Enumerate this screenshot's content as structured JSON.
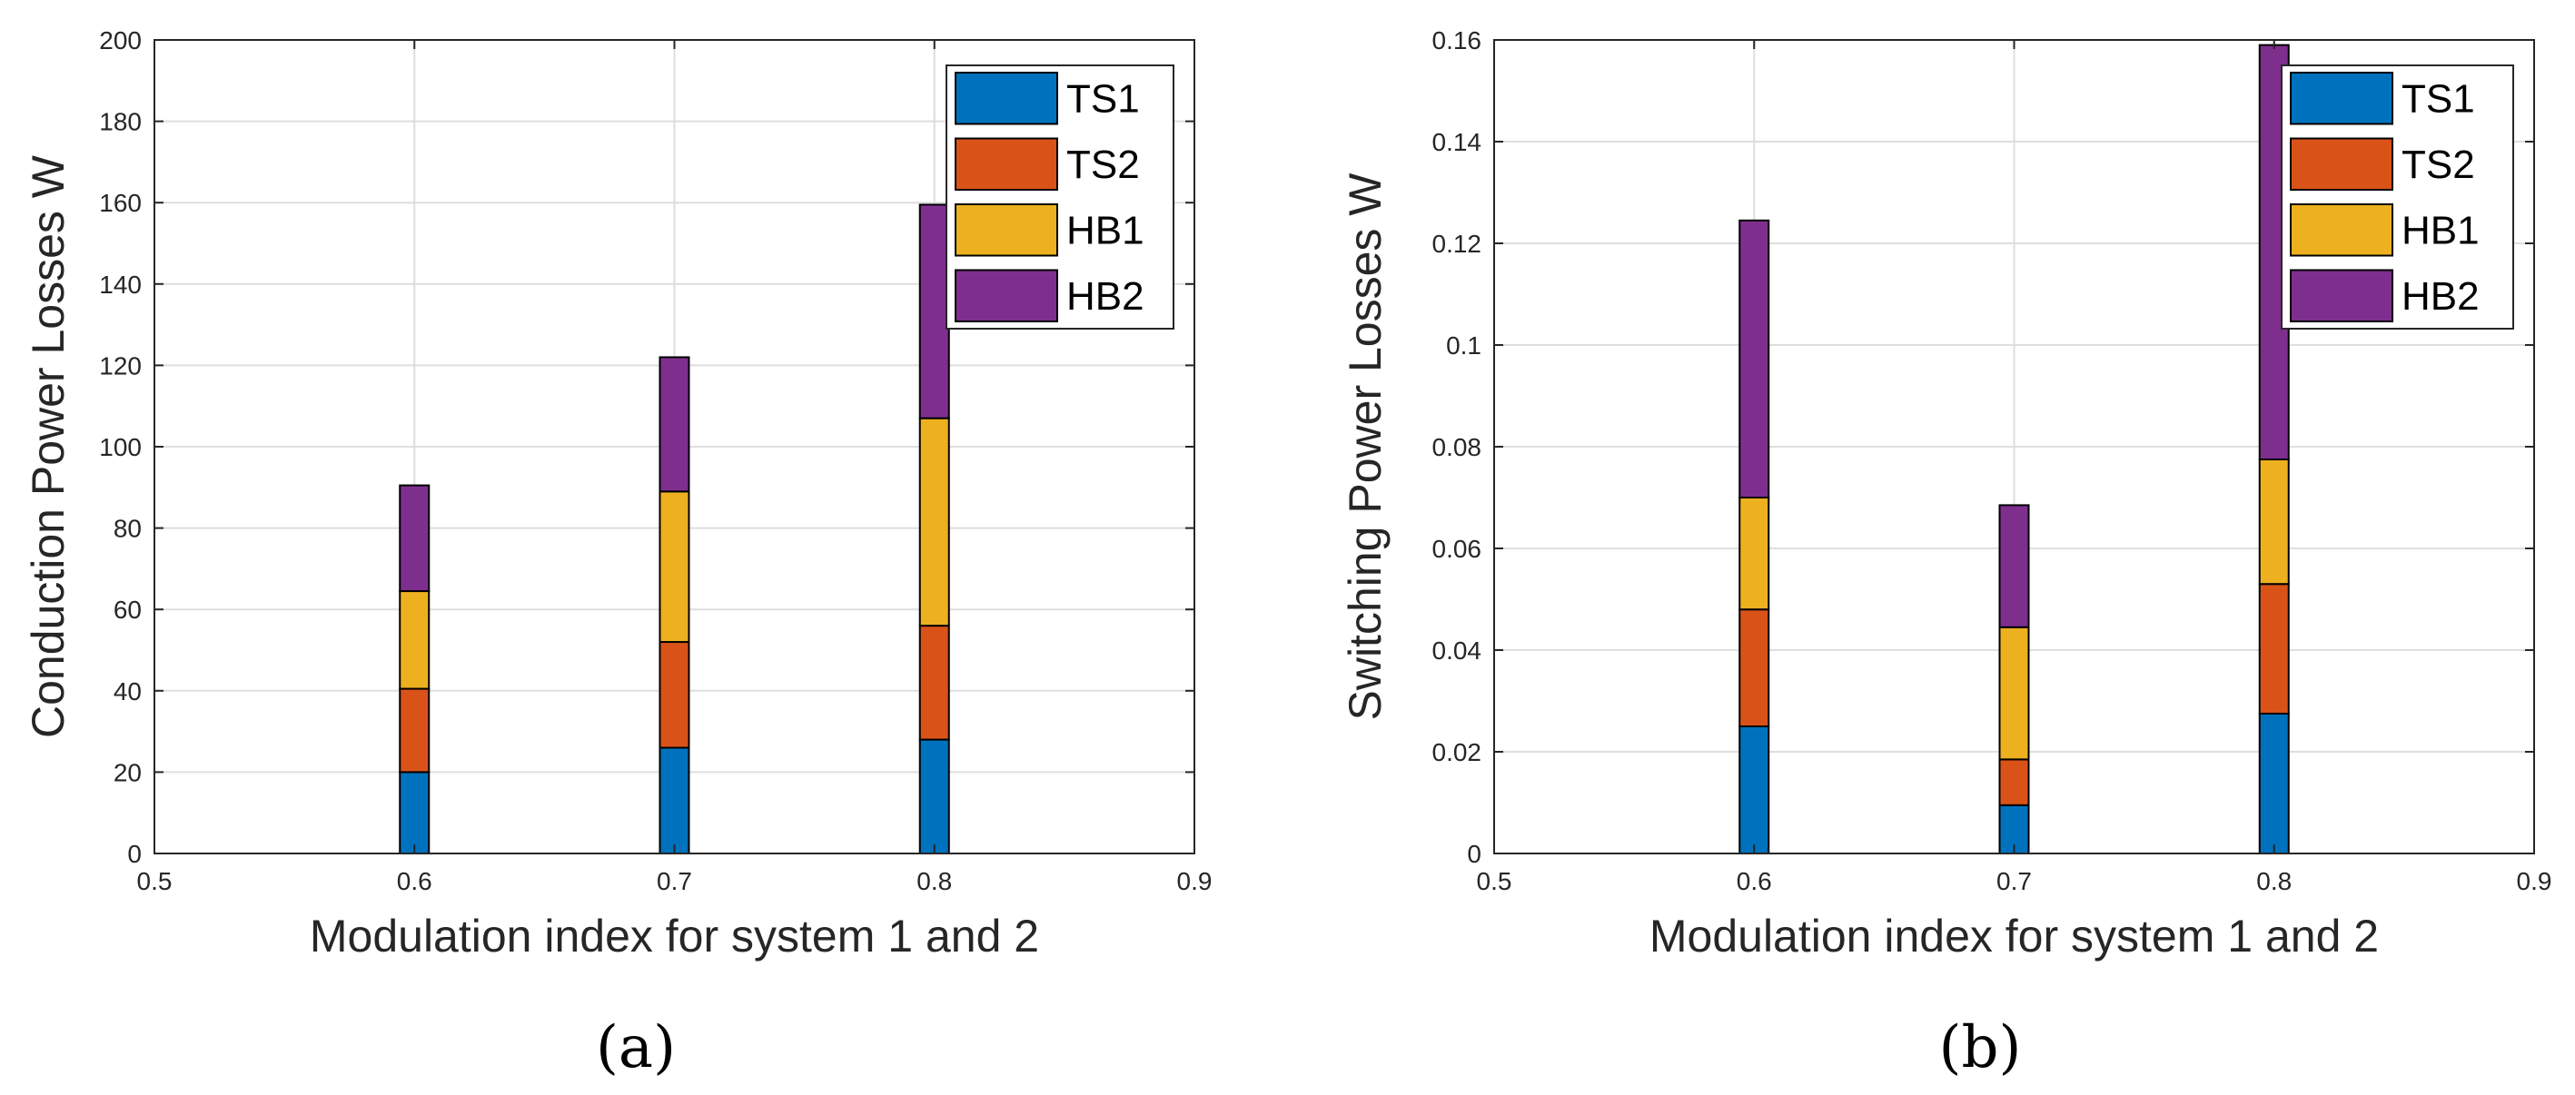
{
  "colors": {
    "TS1": "#0072BD",
    "TS2": "#D95319",
    "HB1": "#EDB120",
    "HB2": "#7E2F8E",
    "grid": "#dedede",
    "axis": "#262626"
  },
  "chart_data": [
    {
      "type": "bar",
      "stacked": true,
      "panel_label": "(a)",
      "title": "",
      "xlabel": "Modulation index for system 1 and 2",
      "ylabel": "Conduction Power Losses W",
      "xlim": [
        0.5,
        0.9
      ],
      "ylim": [
        0,
        200
      ],
      "grid": true,
      "legend_position": "top-right",
      "x": [
        0.6,
        0.7,
        0.8
      ],
      "x_ticks": [
        "0.5",
        "0.6",
        "0.7",
        "0.8",
        "0.9"
      ],
      "y_ticks": [
        "0",
        "20",
        "40",
        "60",
        "80",
        "100",
        "120",
        "140",
        "160",
        "180",
        "200"
      ],
      "series": [
        {
          "name": "TS1",
          "values": [
            20,
            26,
            28
          ]
        },
        {
          "name": "TS2",
          "values": [
            20.5,
            26,
            28
          ]
        },
        {
          "name": "HB1",
          "values": [
            24,
            37,
            51
          ]
        },
        {
          "name": "HB2",
          "values": [
            26,
            33,
            52.5
          ]
        }
      ]
    },
    {
      "type": "bar",
      "stacked": true,
      "panel_label": "(b)",
      "title": "",
      "xlabel": "Modulation index for system 1 and 2",
      "ylabel": "Switching Power Losses W",
      "xlim": [
        0.5,
        0.9
      ],
      "ylim": [
        0,
        0.16
      ],
      "grid": true,
      "legend_position": "top-right",
      "x": [
        0.6,
        0.7,
        0.8
      ],
      "x_ticks": [
        "0.5",
        "0.6",
        "0.7",
        "0.8",
        "0.9"
      ],
      "y_ticks": [
        "0",
        "0.02",
        "0.04",
        "0.06",
        "0.08",
        "0.1",
        "0.12",
        "0.14",
        "0.16"
      ],
      "series": [
        {
          "name": "TS1",
          "values": [
            0.025,
            0.0095,
            0.0275
          ]
        },
        {
          "name": "TS2",
          "values": [
            0.023,
            0.009,
            0.0255
          ]
        },
        {
          "name": "HB1",
          "values": [
            0.022,
            0.026,
            0.0245
          ]
        },
        {
          "name": "HB2",
          "values": [
            0.0545,
            0.024,
            0.0815
          ]
        }
      ]
    }
  ]
}
